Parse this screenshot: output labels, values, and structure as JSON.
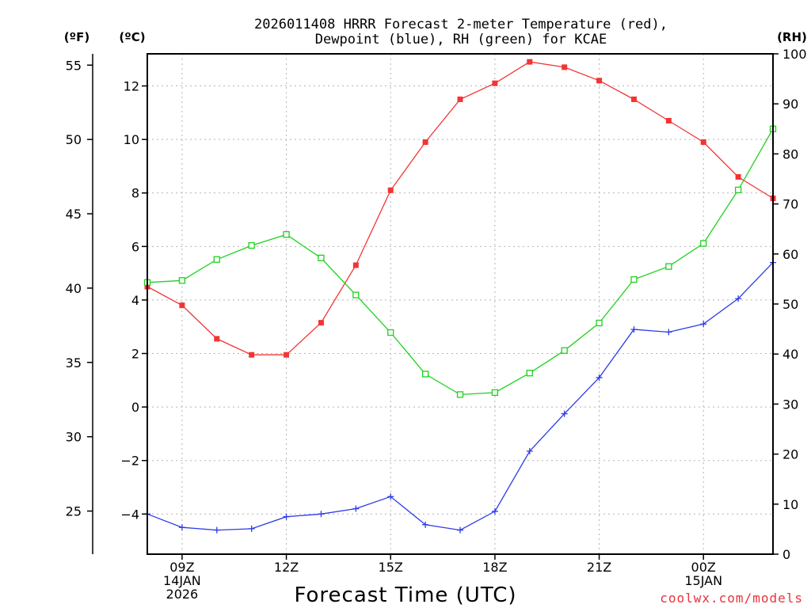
{
  "chart_data": {
    "type": "line",
    "title_line1": "2026011408 HRRR Forecast 2-meter Temperature (red),",
    "title_line2": "Dewpoint (blue), RH (green) for KCAE",
    "unit_f": "(ºF)",
    "unit_c": "(ºC)",
    "unit_rh": "(RH)",
    "xlabel": "Forecast Time (UTC)",
    "credit": "coolwx.com/models",
    "hours": [
      8,
      9,
      10,
      11,
      12,
      13,
      14,
      15,
      16,
      17,
      18,
      19,
      20,
      21,
      22,
      23,
      24,
      25,
      26
    ],
    "x_range": [
      8,
      26
    ],
    "x_ticks": [
      {
        "hour": 9,
        "lines": [
          "09Z",
          "14JAN",
          "2026"
        ]
      },
      {
        "hour": 12,
        "lines": [
          "12Z"
        ]
      },
      {
        "hour": 15,
        "lines": [
          "15Z"
        ]
      },
      {
        "hour": 18,
        "lines": [
          "18Z"
        ]
      },
      {
        "hour": 21,
        "lines": [
          "21Z"
        ]
      },
      {
        "hour": 24,
        "lines": [
          "00Z",
          "15JAN"
        ]
      }
    ],
    "c_axis": {
      "range": [
        -5.5,
        13.2
      ],
      "ticks": [
        "12",
        "10",
        "8",
        "6",
        "4",
        "2",
        "0",
        "−2",
        "−4"
      ],
      "tick_values": [
        12,
        10,
        8,
        6,
        4,
        2,
        0,
        -2,
        -4
      ]
    },
    "f_axis": {
      "range": [
        22.1,
        55.76
      ],
      "ticks": [
        "55",
        "50",
        "45",
        "40",
        "35",
        "30",
        "25"
      ],
      "tick_values": [
        55,
        50,
        45,
        40,
        35,
        30,
        25
      ]
    },
    "rh_axis": {
      "range": [
        0,
        100
      ],
      "ticks": [
        "100",
        "90",
        "80",
        "70",
        "60",
        "50",
        "40",
        "30",
        "20",
        "10",
        "0"
      ],
      "tick_values": [
        100,
        90,
        80,
        70,
        60,
        50,
        40,
        30,
        20,
        10,
        0
      ]
    },
    "series": [
      {
        "name": "Temperature",
        "color": "#f23535",
        "marker": "square-filled",
        "axis": "c",
        "values": [
          4.5,
          3.8,
          2.55,
          1.95,
          1.95,
          3.15,
          5.3,
          8.1,
          9.9,
          11.5,
          12.1,
          12.9,
          12.7,
          12.2,
          11.5,
          10.7,
          9.9,
          8.6,
          7.8
        ]
      },
      {
        "name": "Dewpoint",
        "color": "#2e3ce8",
        "marker": "plus",
        "axis": "c",
        "values": [
          -4.0,
          -4.5,
          -4.6,
          -4.55,
          -4.1,
          -4.0,
          -3.8,
          -3.35,
          -4.4,
          -4.6,
          -3.9,
          -1.65,
          -0.25,
          1.1,
          2.9,
          2.8,
          3.1,
          4.05,
          5.4
        ]
      },
      {
        "name": "RH",
        "color": "#1fd11f",
        "marker": "square-open",
        "axis": "rh",
        "values": [
          54.3,
          54.7,
          58.9,
          61.7,
          63.9,
          59.2,
          51.8,
          44.3,
          36.0,
          31.9,
          32.3,
          36.2,
          40.7,
          46.2,
          54.9,
          57.5,
          62.1,
          72.8,
          85.0
        ]
      }
    ]
  }
}
